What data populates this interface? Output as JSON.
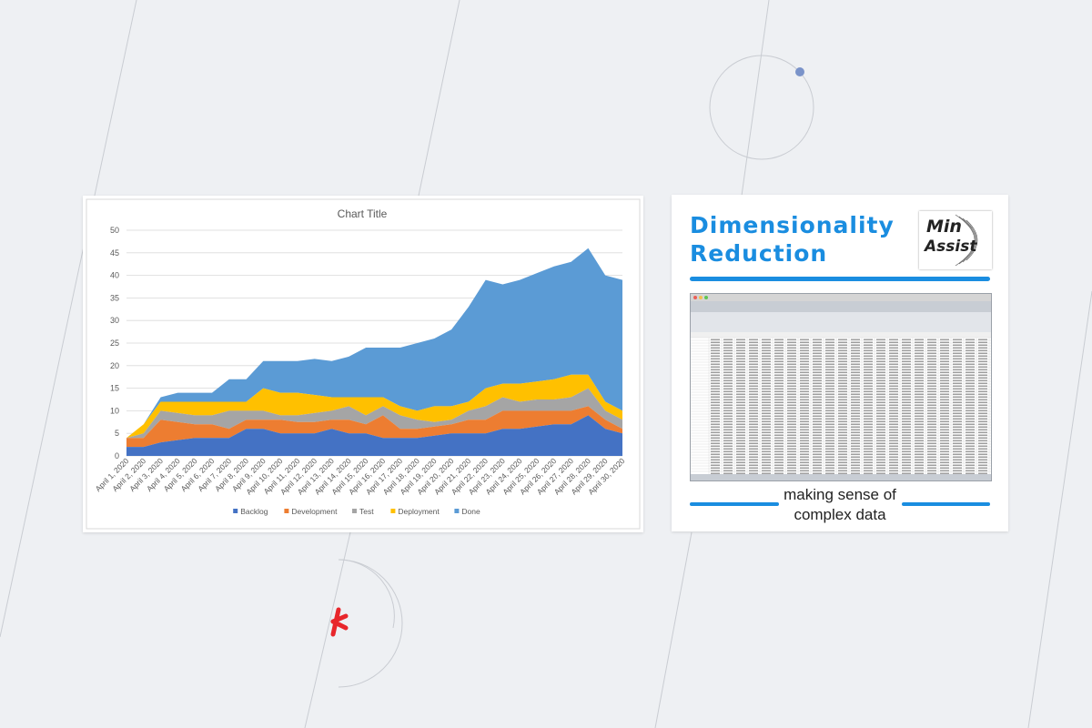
{
  "chart_data": {
    "type": "area",
    "stacked": true,
    "title": "Chart Title",
    "xlabel": "",
    "ylabel": "",
    "ylim": [
      0,
      50
    ],
    "yticks": [
      0,
      5,
      10,
      15,
      20,
      25,
      30,
      35,
      40,
      45,
      50
    ],
    "grid": true,
    "legend": "bottom",
    "categories": [
      "April 1, 2020",
      "April 2, 2020",
      "April 3, 2020",
      "April 4, 2020",
      "April 5, 2020",
      "April 6, 2020",
      "April 7, 2020",
      "April 8, 2020",
      "April 9, 2020",
      "April 10, 2020",
      "April 11, 2020",
      "April 12, 2020",
      "April 13, 2020",
      "April 14, 2020",
      "April 15, 2020",
      "April 16, 2020",
      "April 17, 2020",
      "April 18, 2020",
      "April 19, 2020",
      "April 20, 2020",
      "April 21, 2020",
      "April 22, 2020",
      "April 23, 2020",
      "April 24, 2020",
      "April 25, 2020",
      "April 26, 2020",
      "April 27, 2020",
      "April 28, 2020",
      "April 29, 2020",
      "April 30, 2020"
    ],
    "series": [
      {
        "name": "Backlog",
        "color": "#4472c4",
        "values": [
          2,
          2,
          3,
          3.5,
          4,
          4,
          4,
          6,
          6,
          5,
          5,
          5,
          6,
          5,
          5,
          4,
          4,
          4,
          4.5,
          5,
          5,
          5,
          6,
          6,
          6.5,
          7,
          7,
          9,
          6,
          5
        ]
      },
      {
        "name": "Development",
        "color": "#ed7d31",
        "values": [
          2,
          2,
          5,
          4,
          3,
          3,
          2,
          2,
          2,
          3,
          2.5,
          2.5,
          2,
          3,
          2,
          5,
          2,
          2,
          2,
          2,
          3,
          3,
          4,
          4,
          3.5,
          3,
          3,
          2,
          2,
          1
        ]
      },
      {
        "name": "Test",
        "color": "#a5a5a5",
        "values": [
          0,
          1,
          2,
          2,
          2,
          2,
          4,
          2,
          2,
          1,
          1.5,
          2,
          2,
          3,
          2,
          2,
          3,
          2,
          1,
          1,
          2,
          3,
          3,
          2,
          2.5,
          2.5,
          3,
          4,
          2,
          2
        ]
      },
      {
        "name": "Deployment",
        "color": "#ffc000",
        "values": [
          0,
          2,
          2,
          2.5,
          3,
          3,
          2,
          2,
          5,
          5,
          5,
          4,
          3,
          2,
          4,
          2,
          2,
          2,
          3.5,
          3,
          2,
          4,
          3,
          4,
          4,
          4.5,
          5,
          3,
          2,
          2
        ]
      },
      {
        "name": "Done",
        "color": "#5b9bd5",
        "values": [
          0,
          0,
          1,
          2,
          2,
          2,
          5,
          5,
          6,
          7,
          7,
          8,
          8,
          9,
          11,
          11,
          13,
          15,
          15,
          17,
          21,
          24,
          22,
          23,
          24,
          25,
          25,
          28,
          28,
          29
        ]
      }
    ]
  },
  "book": {
    "title_line1": "Dimensionality",
    "title_line2": "Reduction",
    "logo_line1": "Min",
    "logo_line2": "Assist",
    "tagline_line1": "making sense of",
    "tagline_line2": "complex data"
  }
}
